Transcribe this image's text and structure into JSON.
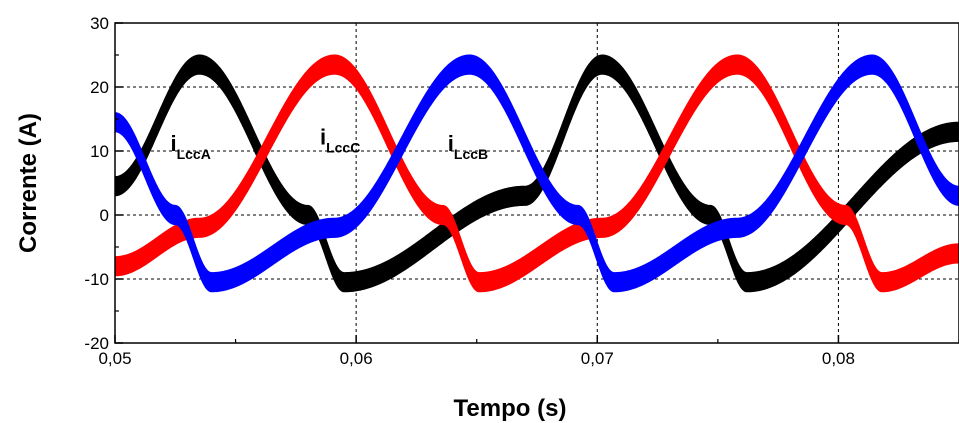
{
  "chart_data": {
    "type": "line",
    "title": "",
    "xlabel": "Tempo (s)",
    "ylabel": "Corrente (A)",
    "xlim": [
      0.05,
      0.085
    ],
    "ylim": [
      -20,
      30
    ],
    "x_ticks": [
      0.05,
      0.06,
      0.07,
      0.08
    ],
    "x_tick_labels": [
      "0,05",
      "0,06",
      "0,07",
      "0,08"
    ],
    "y_ticks": [
      -20,
      -10,
      0,
      10,
      20,
      30
    ],
    "y_tick_labels": [
      "-20",
      "-10",
      "0",
      "10",
      "20",
      "30"
    ],
    "grid": true,
    "legend": "none",
    "fundamental_frequency_hz": 60,
    "ripple_band_A": 3,
    "series": [
      {
        "name": "iLccA",
        "label_main": "i",
        "label_sub": "LccA",
        "color": "#000000",
        "points": [
          [
            0.05,
            4.5
          ],
          [
            0.0535,
            23.5
          ],
          [
            0.058,
            0
          ],
          [
            0.0595,
            -10.5
          ],
          [
            0.067,
            3
          ],
          [
            0.0702,
            23.5
          ],
          [
            0.0747,
            0
          ],
          [
            0.0762,
            -10.5
          ],
          [
            0.085,
            13
          ]
        ]
      },
      {
        "name": "iLccC",
        "label_main": "i",
        "label_sub": "LccC",
        "color": "#ff0000",
        "points": [
          [
            0.05,
            -8
          ],
          [
            0.0535,
            -2
          ],
          [
            0.0591,
            23.5
          ],
          [
            0.0636,
            0
          ],
          [
            0.0651,
            -10.5
          ],
          [
            0.0702,
            -2
          ],
          [
            0.0758,
            23.5
          ],
          [
            0.0803,
            0
          ],
          [
            0.0818,
            -10.5
          ],
          [
            0.085,
            -6
          ]
        ]
      },
      {
        "name": "iLccB",
        "label_main": "i",
        "label_sub": "LccB",
        "color": "#0000ff",
        "points": [
          [
            0.05,
            14.5
          ],
          [
            0.0525,
            0
          ],
          [
            0.054,
            -10.5
          ],
          [
            0.0591,
            -2
          ],
          [
            0.0647,
            23.5
          ],
          [
            0.0692,
            0
          ],
          [
            0.0707,
            -10.5
          ],
          [
            0.0758,
            -2
          ],
          [
            0.0814,
            23.5
          ],
          [
            0.085,
            3
          ]
        ]
      }
    ],
    "annotations": [
      {
        "series": "iLccA",
        "x": 0.0523,
        "y": 10
      },
      {
        "series": "iLccC",
        "x": 0.0585,
        "y": 11
      },
      {
        "series": "iLccB",
        "x": 0.0638,
        "y": 10
      }
    ]
  }
}
